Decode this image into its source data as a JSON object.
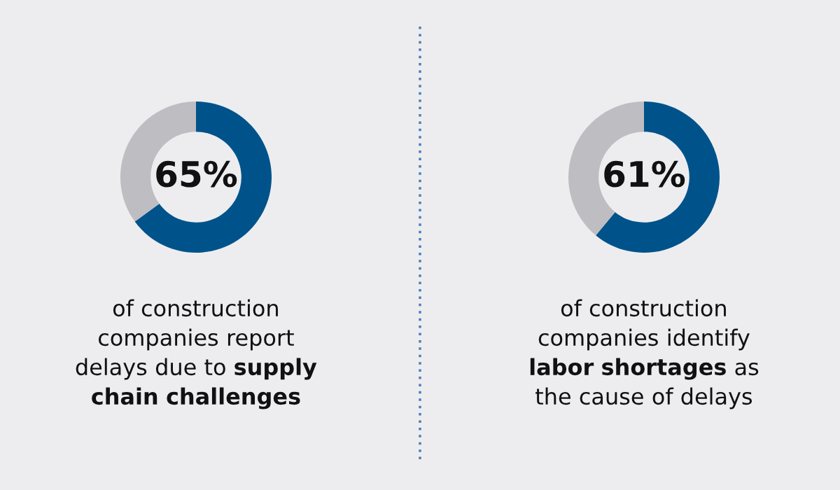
{
  "chart_data": [
    {
      "type": "donut",
      "categories": [
        null,
        null
      ],
      "values": [
        65,
        35
      ],
      "colors": [
        "#00538a",
        "#bdbdc2"
      ],
      "value_labels": [
        "65%",
        null
      ],
      "annotations": [
        "of construction companies report delays due to",
        "supply chain challenges"
      ]
    },
    {
      "type": "donut",
      "categories": [
        null,
        null
      ],
      "values": [
        61,
        39
      ],
      "colors": [
        "#00538a",
        "#bdbdc2"
      ],
      "value_labels": [
        "61%",
        null
      ],
      "annotations": [
        "of construction companies identify",
        "labor shortages",
        "as the cause of delays"
      ]
    }
  ]
}
